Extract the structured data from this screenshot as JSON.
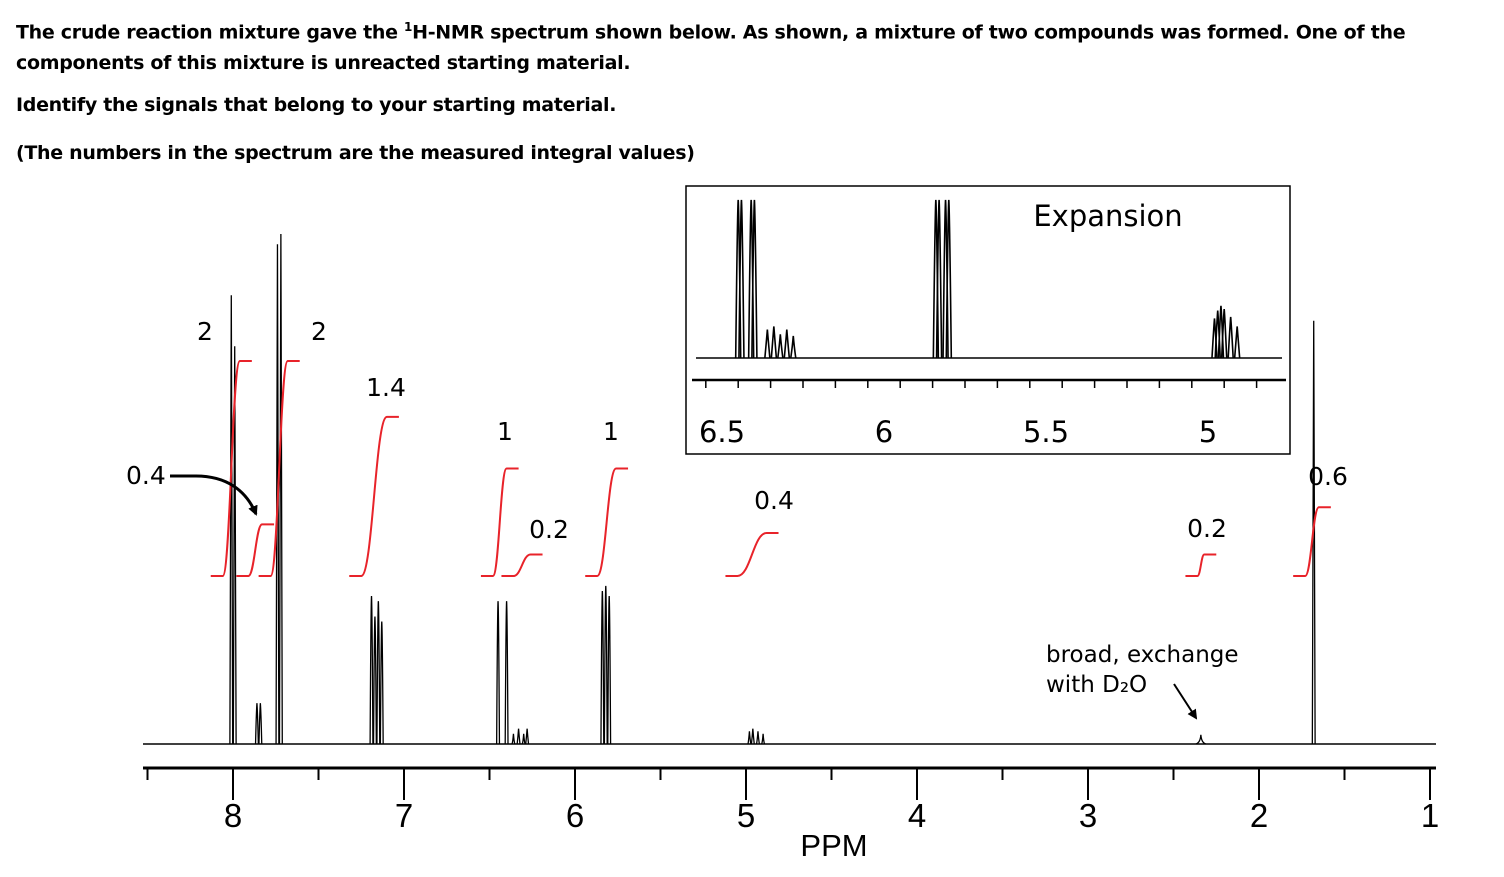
{
  "question": {
    "intro_before_sup": "The crude reaction mixture gave the ",
    "sup": "1",
    "intro_after_sup": "H-NMR spectrum shown below. As shown, a mixture of two compounds was formed. One of the components of this mixture is unreacted starting material.",
    "instruction": "Identify the signals that belong to your starting material.",
    "note": "(The numbers in the spectrum are the measured integral values)"
  },
  "chart_data": {
    "type": "line",
    "xlabel": "PPM",
    "xlim": [
      8.55,
      1.0
    ],
    "x_ticks": [
      "8",
      "7",
      "6",
      "5",
      "4",
      "3",
      "2",
      "1"
    ],
    "peaks": [
      {
        "ppm": 8.01,
        "height": 0.88
      },
      {
        "ppm": 7.99,
        "height": 0.78
      },
      {
        "ppm": 7.86,
        "height": 0.08
      },
      {
        "ppm": 7.84,
        "height": 0.08
      },
      {
        "ppm": 7.74,
        "height": 0.98
      },
      {
        "ppm": 7.72,
        "height": 1.0
      },
      {
        "ppm": 7.19,
        "height": 0.29
      },
      {
        "ppm": 7.17,
        "height": 0.25
      },
      {
        "ppm": 7.15,
        "height": 0.28
      },
      {
        "ppm": 7.13,
        "height": 0.24
      },
      {
        "ppm": 6.45,
        "height": 0.28
      },
      {
        "ppm": 6.4,
        "height": 0.28
      },
      {
        "ppm": 6.36,
        "height": 0.02
      },
      {
        "ppm": 6.33,
        "height": 0.03
      },
      {
        "ppm": 6.3,
        "height": 0.02
      },
      {
        "ppm": 6.28,
        "height": 0.03
      },
      {
        "ppm": 5.84,
        "height": 0.3
      },
      {
        "ppm": 5.82,
        "height": 0.31
      },
      {
        "ppm": 5.8,
        "height": 0.29
      },
      {
        "ppm": 4.98,
        "height": 0.025
      },
      {
        "ppm": 4.96,
        "height": 0.03
      },
      {
        "ppm": 4.93,
        "height": 0.025
      },
      {
        "ppm": 4.9,
        "height": 0.02
      },
      {
        "ppm": 2.34,
        "height": 0.018
      },
      {
        "ppm": 1.68,
        "height": 0.83
      }
    ],
    "integrals": [
      {
        "ppm_start": 8.06,
        "ppm_end": 7.96,
        "rise": 0.5,
        "label": "2"
      },
      {
        "ppm_start": 7.91,
        "ppm_end": 7.83,
        "rise": 0.12,
        "label": "0.4"
      },
      {
        "ppm_start": 7.78,
        "ppm_end": 7.68,
        "rise": 0.5,
        "label": "2"
      },
      {
        "ppm_start": 7.25,
        "ppm_end": 7.1,
        "rise": 0.37,
        "label": "1.4"
      },
      {
        "ppm_start": 6.48,
        "ppm_end": 6.4,
        "rise": 0.25,
        "label": "1"
      },
      {
        "ppm_start": 6.36,
        "ppm_end": 6.26,
        "rise": 0.05,
        "label": "0.2"
      },
      {
        "ppm_start": 5.87,
        "ppm_end": 5.76,
        "rise": 0.25,
        "label": "1"
      },
      {
        "ppm_start": 5.05,
        "ppm_end": 4.88,
        "rise": 0.1,
        "label": "0.4"
      },
      {
        "ppm_start": 2.36,
        "ppm_end": 2.32,
        "rise": 0.05,
        "label": "0.2"
      },
      {
        "ppm_start": 1.73,
        "ppm_end": 1.65,
        "rise": 0.16,
        "label": "0.6"
      }
    ],
    "annotations": {
      "broad_line1": "broad, exchange",
      "broad_line2": "with D₂O",
      "broad_ppm": 2.34,
      "arrow_label": "0.4",
      "arrow_target_ppm": 7.84
    },
    "inset": {
      "title": "Expansion",
      "xlim": [
        6.6,
        4.75
      ],
      "x_ticks": [
        "6.5",
        "6",
        "5.5",
        "5"
      ],
      "peaks": [
        {
          "ppm": 6.45,
          "height": 1.0
        },
        {
          "ppm": 6.44,
          "height": 1.0
        },
        {
          "ppm": 6.41,
          "height": 1.0
        },
        {
          "ppm": 6.4,
          "height": 1.0
        },
        {
          "ppm": 6.36,
          "height": 0.18
        },
        {
          "ppm": 6.34,
          "height": 0.2
        },
        {
          "ppm": 6.32,
          "height": 0.15
        },
        {
          "ppm": 6.3,
          "height": 0.18
        },
        {
          "ppm": 6.28,
          "height": 0.14
        },
        {
          "ppm": 5.84,
          "height": 1.0
        },
        {
          "ppm": 5.83,
          "height": 1.0
        },
        {
          "ppm": 5.81,
          "height": 1.0
        },
        {
          "ppm": 5.8,
          "height": 1.0
        },
        {
          "ppm": 4.98,
          "height": 0.25
        },
        {
          "ppm": 4.97,
          "height": 0.3
        },
        {
          "ppm": 4.96,
          "height": 0.33
        },
        {
          "ppm": 4.95,
          "height": 0.31
        },
        {
          "ppm": 4.93,
          "height": 0.26
        },
        {
          "ppm": 4.91,
          "height": 0.2
        }
      ]
    }
  }
}
